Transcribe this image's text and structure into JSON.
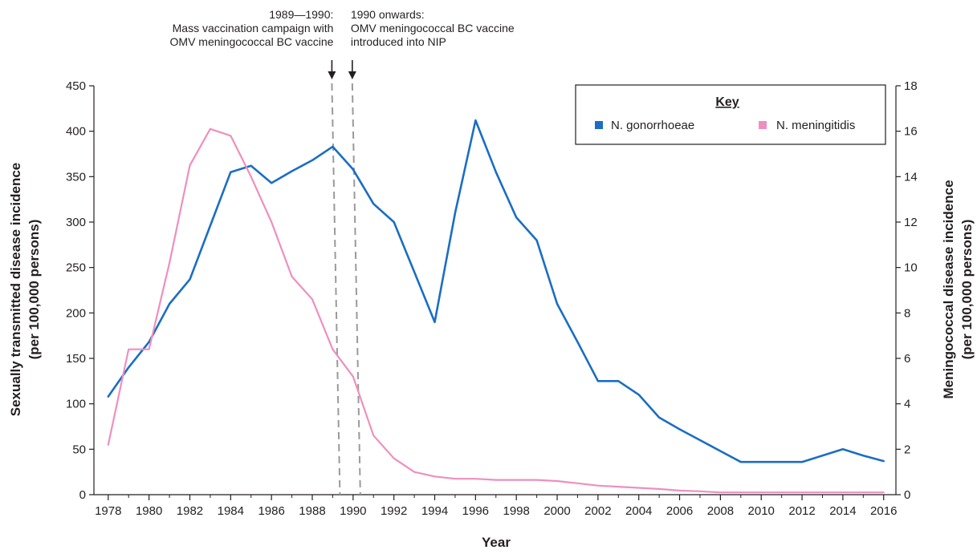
{
  "chart_data": {
    "type": "line",
    "x_ticks": [
      "1978",
      "1980",
      "1982",
      "1984",
      "1986",
      "1988",
      "1990",
      "1992",
      "1994",
      "1996",
      "1998",
      "2000",
      "2002",
      "2004",
      "2006",
      "2008",
      "2010",
      "2012",
      "2014",
      "2016"
    ],
    "xlabel": "Year",
    "ylabel_left_line1": "Sexually transmitted disease incidence",
    "ylabel_left_line2": "(per 100,000 persons)",
    "ylabel_right_line1": "Meningococcal disease incidence",
    "ylabel_right_line2": "(per 100,000 persons)",
    "ylim_left": [
      0,
      450
    ],
    "ylim_right": [
      0,
      18
    ],
    "xlim": [
      1977.3,
      2016.6
    ],
    "yticks_left": [
      "0",
      "50",
      "100",
      "150",
      "200",
      "250",
      "300",
      "350",
      "400",
      "450"
    ],
    "yticks_right": [
      "0",
      "2",
      "4",
      "6",
      "8",
      "10",
      "12",
      "14",
      "16",
      "18"
    ],
    "grid": false,
    "legend": {
      "title": "Key",
      "position": "top-right",
      "entries": [
        {
          "name": "N. gonorrhoeae",
          "color": "#1b6ec2"
        },
        {
          "name": "N. meningitidis",
          "color": "#ee8fbf"
        }
      ]
    },
    "series": [
      {
        "name": "N. gonorrhoeae",
        "axis": "left",
        "color": "#1b6ec2",
        "x": [
          1978,
          1979,
          1980,
          1981,
          1982,
          1983,
          1984,
          1985,
          1986,
          1987,
          1988,
          1989,
          1990,
          1991,
          1992,
          1993,
          1994,
          1995,
          1996,
          1997,
          1998,
          1999,
          2000,
          2001,
          2002,
          2003,
          2004,
          2005,
          2006,
          2007,
          2008,
          2009,
          2010,
          2011,
          2012,
          2013,
          2014,
          2015,
          2016
        ],
        "y": [
          108,
          140,
          168,
          210,
          237,
          296,
          355,
          362,
          343,
          356,
          368,
          383,
          358,
          320,
          300,
          245,
          190,
          310,
          412,
          355,
          305,
          280,
          210,
          168,
          125,
          125,
          110,
          85,
          72,
          60,
          48,
          36,
          36,
          36,
          36,
          43,
          50,
          43,
          37
        ]
      },
      {
        "name": "N. meningitidis",
        "axis": "right",
        "color": "#ee8fbf",
        "x": [
          1978,
          1979,
          1980,
          1981,
          1982,
          1983,
          1984,
          1985,
          1986,
          1987,
          1988,
          1989,
          1990,
          1991,
          1992,
          1993,
          1994,
          1995,
          1996,
          1997,
          1998,
          1999,
          2000,
          2001,
          2002,
          2003,
          2004,
          2005,
          2006,
          2007,
          2008,
          2009,
          2010,
          2011,
          2012,
          2013,
          2014,
          2015,
          2016
        ],
        "y": [
          2.2,
          6.4,
          6.4,
          10.2,
          14.5,
          16.1,
          15.8,
          14.0,
          12.0,
          9.6,
          8.6,
          6.4,
          5.2,
          2.6,
          1.6,
          1.0,
          0.8,
          0.7,
          0.7,
          0.65,
          0.65,
          0.65,
          0.6,
          0.5,
          0.4,
          0.35,
          0.3,
          0.25,
          0.18,
          0.15,
          0.1,
          0.1,
          0.1,
          0.1,
          0.1,
          0.1,
          0.1,
          0.1,
          0.1
        ]
      }
    ],
    "annotations": [
      {
        "x": 1989,
        "lines": [
          "1989—1990:",
          "Mass vaccination campaign with",
          "OMV meningococcal BC vaccine"
        ]
      },
      {
        "x": 1990,
        "lines": [
          "1990 onwards:",
          "OMV meningococcal BC vaccine",
          "introduced into NIP"
        ]
      }
    ]
  }
}
